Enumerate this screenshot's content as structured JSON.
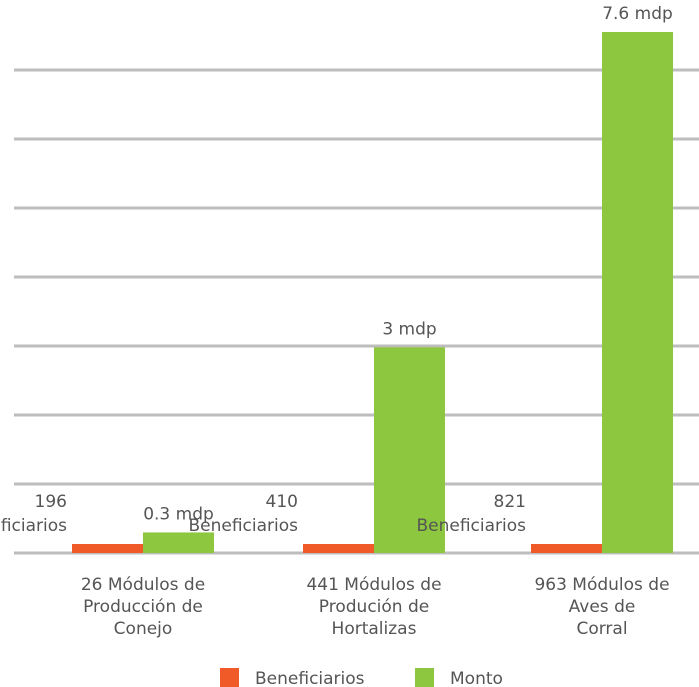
{
  "chart_data": {
    "type": "bar",
    "title": "",
    "xlabel": "",
    "ylabel": "",
    "categories": [
      [
        "26 Módulos de",
        "Producción de",
        "Conejo"
      ],
      [
        "441 Módulos de",
        "Produción de",
        "Hortalizas"
      ],
      [
        "963 Módulos de",
        "Aves de",
        "Corral"
      ]
    ],
    "series": [
      {
        "name": "Beneficiarios",
        "color": "#f05a28",
        "values": [
          0.15,
          0.15,
          0.15
        ],
        "labels": [
          [
            "196",
            "Beneficiarios"
          ],
          [
            "410",
            "Beneficiarios"
          ],
          [
            "821",
            "Beneficiarios"
          ]
        ]
      },
      {
        "name": "Monto",
        "color": "#8dc63f",
        "values": [
          0.3,
          3,
          7.6
        ],
        "labels": [
          [
            "0.3 mdp"
          ],
          [
            "3 mdp"
          ],
          [
            "7.6 mdp"
          ]
        ]
      }
    ],
    "ylim": [
      0,
      7.6
    ],
    "grid": true,
    "legend": "bottom-center"
  }
}
